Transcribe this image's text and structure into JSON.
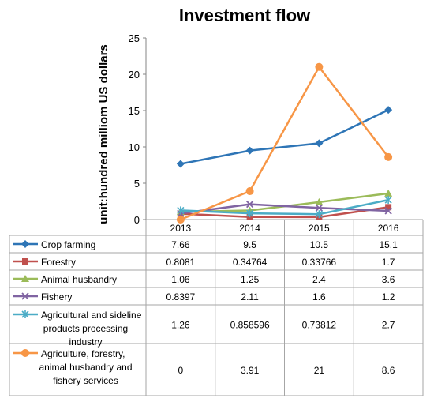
{
  "chart_data": {
    "type": "line",
    "title": "Investment flow",
    "ylabel": "unit:hundred milliom US dollars",
    "xlabel": "",
    "categories": [
      "2013",
      "2014",
      "2015",
      "2016"
    ],
    "y_ticks": [
      "0",
      "5",
      "10",
      "15",
      "20",
      "25"
    ],
    "ylim": [
      0,
      25
    ],
    "grid": false,
    "legend": "data-table",
    "series": [
      {
        "name": "Crop farming",
        "values": [
          7.66,
          9.5,
          10.5,
          15.1
        ],
        "labels": [
          "7.66",
          "9.5",
          "10.5",
          "15.1"
        ],
        "color": "#2E75B6",
        "marker": "diamond",
        "label_lines": [
          "Crop farming"
        ]
      },
      {
        "name": "Forestry",
        "values": [
          0.8081,
          0.34764,
          0.33766,
          1.7
        ],
        "labels": [
          "0.8081",
          "0.34764",
          "0.33766",
          "1.7"
        ],
        "color": "#C0504D",
        "marker": "square",
        "label_lines": [
          "Forestry"
        ]
      },
      {
        "name": "Animal husbandry",
        "values": [
          1.06,
          1.25,
          2.4,
          3.6
        ],
        "labels": [
          "1.06",
          "1.25",
          "2.4",
          "3.6"
        ],
        "color": "#9BBB59",
        "marker": "triangle",
        "label_lines": [
          "Animal husbandry"
        ]
      },
      {
        "name": "Fishery",
        "values": [
          0.8397,
          2.11,
          1.6,
          1.2
        ],
        "labels": [
          "0.8397",
          "2.11",
          "1.6",
          "1.2"
        ],
        "color": "#8064A2",
        "marker": "x",
        "label_lines": [
          "Fishery"
        ]
      },
      {
        "name": "Agricultural and sideline products processing industry",
        "values": [
          1.26,
          0.858596,
          0.73812,
          2.7
        ],
        "labels": [
          "1.26",
          "0.858596",
          "0.73812",
          "2.7"
        ],
        "color": "#4BACC6",
        "marker": "star",
        "label_lines": [
          "Agricultural and sideline",
          "products processing",
          "industry"
        ]
      },
      {
        "name": "Agriculture, forestry, animal husbandry and fishery services",
        "values": [
          0,
          3.91,
          21,
          8.6
        ],
        "labels": [
          "0",
          "3.91",
          "21",
          "8.6"
        ],
        "color": "#F79646",
        "marker": "circle",
        "label_lines": [
          "Agriculture, forestry,",
          "animal husbandry and",
          "fishery services"
        ]
      }
    ]
  }
}
